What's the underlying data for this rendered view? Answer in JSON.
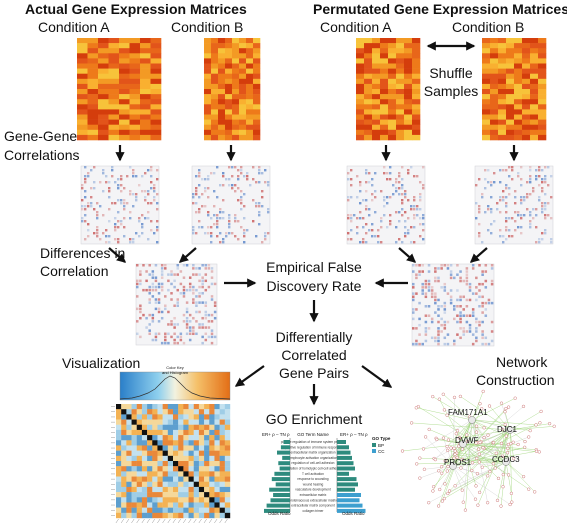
{
  "headers": {
    "actual": "Actual Gene Expression Matrices",
    "permutated": "Permutated Gene Expression Matrices"
  },
  "conditions": {
    "actual_a": "Condition A",
    "actual_b": "Condition B",
    "perm_a": "Condition A",
    "perm_b": "Condition B"
  },
  "shuffle": {
    "line1": "Shuffle",
    "line2": "Samples"
  },
  "labels": {
    "gene_gene_1": "Gene-Gene",
    "gene_gene_2": "Correlations",
    "diff_1": "Differences in",
    "diff_2": "Correlation",
    "fdr_1": "Empirical False",
    "fdr_2": "Discovery Rate",
    "dc_1": "Differentially",
    "dc_2": "Correlated",
    "dc_3": "Gene Pairs",
    "visualization": "Visualization",
    "go_enrichment": "GO Enrichment",
    "network_1": "Network",
    "network_2": "Construction"
  },
  "visualization_panel": {
    "title_1": "Color Key",
    "title_2": "and Histogram"
  },
  "go_panel": {
    "left_header": "ER+ ρ – TN ρ",
    "term_header": "GO Term Name",
    "right_header": "ER+ ρ – TN ρ",
    "legend_title": "GO Type",
    "legend_bp": "BP",
    "legend_cc": "CC",
    "xlabel_left": "Odds Ratio",
    "xlabel_right": "Odds Ratio",
    "terms": [
      "positive regulation of immune system process",
      "positive regulation of immune response",
      "extracellular matrix organization",
      "lymphocyte activation organization",
      "regulation of cell-cell adhesion",
      "regulation of homotypic cell-cell adhesion",
      "T cell activation",
      "response to wounding",
      "wound healing",
      "vasculature development",
      "extracellular matrix",
      "proteinaceous extracellular matrix",
      "extracellular matrix component",
      "collagen trimer"
    ]
  },
  "network_panel": {
    "genes": [
      "FAM171A1",
      "DVWF",
      "PROS1",
      "DJC1",
      "CCDC3"
    ]
  },
  "colors": {
    "heat_dark": "#d43d0c",
    "heat_mid": "#ee7a1a",
    "heat_light": "#f7c33a",
    "go_bar": "#2e8b7e",
    "network_edge": "#9fd67a",
    "arrow": "#111111"
  }
}
